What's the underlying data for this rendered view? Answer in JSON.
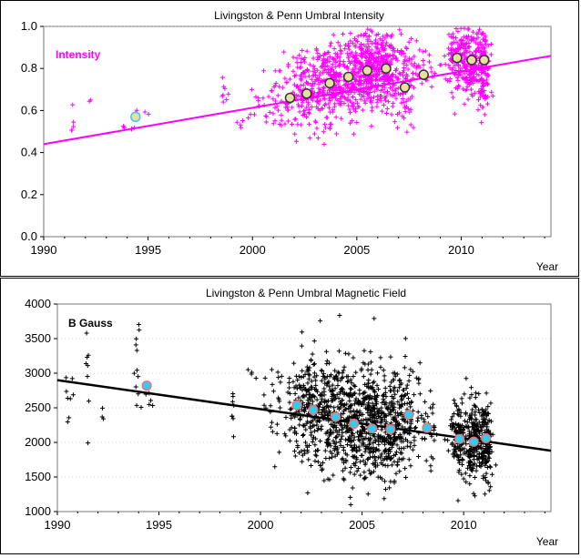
{
  "colors": {
    "plot_bg": "#ffffff",
    "intensity": "#ff00ff",
    "field": "#000000",
    "marker_fill": "#e8e0a0",
    "marker_fill_field": "#33ccee",
    "marker_ring_field": "#ff6666"
  },
  "chart_data": [
    {
      "type": "scatter",
      "title": "Livingston & Penn Umbral Intensity",
      "series_label": "Intensity",
      "xlabel": "Year",
      "ylabel": "",
      "xlim": [
        1990,
        2014.3
      ],
      "ylim": [
        0.0,
        1.0
      ],
      "xticks": [
        "1990",
        "1995",
        "2000",
        "2005",
        "2010"
      ],
      "yticks": [
        "0.0",
        "0.2",
        "0.4",
        "0.6",
        "0.8",
        "1.0"
      ],
      "grid": false,
      "trend_line": {
        "x": [
          1990,
          2014.3
        ],
        "y": [
          0.44,
          0.86
        ]
      },
      "yearly_means": {
        "x": [
          1994.4,
          2001.8,
          2002.6,
          2003.7,
          2004.6,
          2005.5,
          2006.4,
          2007.3,
          2008.2,
          2009.8,
          2010.5,
          2011.1
        ],
        "y": [
          0.57,
          0.66,
          0.68,
          0.73,
          0.76,
          0.79,
          0.8,
          0.71,
          0.77,
          0.85,
          0.84,
          0.84
        ]
      },
      "scatter_clusters": [
        {
          "x": 1991.4,
          "y": 0.55,
          "n": 5,
          "sx": 0.05,
          "sy": 0.06
        },
        {
          "x": 1992.2,
          "y": 0.63,
          "n": 2,
          "sx": 0.05,
          "sy": 0.02
        },
        {
          "x": 1993.8,
          "y": 0.52,
          "n": 3,
          "sx": 0.05,
          "sy": 0.02
        },
        {
          "x": 1994.3,
          "y": 0.56,
          "n": 6,
          "sx": 0.1,
          "sy": 0.04
        },
        {
          "x": 1995.1,
          "y": 0.6,
          "n": 2,
          "sx": 0.1,
          "sy": 0.01
        },
        {
          "x": 1998.7,
          "y": 0.7,
          "n": 8,
          "sx": 0.1,
          "sy": 0.07
        },
        {
          "x": 1999.4,
          "y": 0.56,
          "n": 4,
          "sx": 0.15,
          "sy": 0.05
        },
        {
          "x": 2000.4,
          "y": 0.62,
          "n": 15,
          "sx": 0.3,
          "sy": 0.05
        },
        {
          "x": 2001.4,
          "y": 0.66,
          "n": 45,
          "sx": 0.5,
          "sy": 0.08
        },
        {
          "x": 2002.6,
          "y": 0.7,
          "n": 140,
          "sx": 0.45,
          "sy": 0.1
        },
        {
          "x": 2003.7,
          "y": 0.74,
          "n": 180,
          "sx": 0.4,
          "sy": 0.1
        },
        {
          "x": 2004.6,
          "y": 0.77,
          "n": 170,
          "sx": 0.35,
          "sy": 0.1
        },
        {
          "x": 2005.5,
          "y": 0.8,
          "n": 220,
          "sx": 0.3,
          "sy": 0.09
        },
        {
          "x": 2006.4,
          "y": 0.8,
          "n": 200,
          "sx": 0.35,
          "sy": 0.09
        },
        {
          "x": 2007.3,
          "y": 0.73,
          "n": 80,
          "sx": 0.3,
          "sy": 0.1
        },
        {
          "x": 2008.2,
          "y": 0.78,
          "n": 40,
          "sx": 0.35,
          "sy": 0.06
        },
        {
          "x": 2009.8,
          "y": 0.84,
          "n": 110,
          "sx": 0.25,
          "sy": 0.08
        },
        {
          "x": 2010.5,
          "y": 0.82,
          "n": 160,
          "sx": 0.25,
          "sy": 0.09
        },
        {
          "x": 2011.1,
          "y": 0.8,
          "n": 130,
          "sx": 0.15,
          "sy": 0.1
        }
      ]
    },
    {
      "type": "scatter",
      "title": "Livingston & Penn Umbral Magnetic Field",
      "series_label": "B Gauss",
      "xlabel": "Year",
      "ylabel": "",
      "xlim": [
        1990,
        2014.3
      ],
      "ylim": [
        1000,
        4000
      ],
      "xticks": [
        "1990",
        "1995",
        "2000",
        "2005",
        "2010"
      ],
      "yticks": [
        "1000",
        "1500",
        "2000",
        "2500",
        "3000",
        "3500",
        "4000"
      ],
      "grid": true,
      "trend_line": {
        "x": [
          1990,
          2014.3
        ],
        "y": [
          2900,
          1880
        ]
      },
      "yearly_means": {
        "x": [
          1994.4,
          2001.8,
          2002.6,
          2003.7,
          2004.6,
          2005.5,
          2006.4,
          2007.3,
          2008.2,
          2009.8,
          2010.5,
          2011.1
        ],
        "y": [
          2820,
          2540,
          2470,
          2370,
          2270,
          2200,
          2190,
          2400,
          2210,
          2050,
          2010,
          2060
        ]
      },
      "scatter_clusters": [
        {
          "x": 1990.5,
          "y": 2700,
          "n": 8,
          "sx": 0.2,
          "sy": 250
        },
        {
          "x": 1991.4,
          "y": 2900,
          "n": 8,
          "sx": 0.1,
          "sy": 350
        },
        {
          "x": 1992.3,
          "y": 2450,
          "n": 3,
          "sx": 0.1,
          "sy": 80
        },
        {
          "x": 1993.9,
          "y": 3000,
          "n": 12,
          "sx": 0.1,
          "sy": 380
        },
        {
          "x": 1994.6,
          "y": 2500,
          "n": 5,
          "sx": 0.2,
          "sy": 150
        },
        {
          "x": 1998.7,
          "y": 2500,
          "n": 8,
          "sx": 0.1,
          "sy": 200
        },
        {
          "x": 1999.7,
          "y": 3000,
          "n": 6,
          "sx": 0.2,
          "sy": 120
        },
        {
          "x": 2000.8,
          "y": 2550,
          "n": 25,
          "sx": 0.3,
          "sy": 350
        },
        {
          "x": 2001.8,
          "y": 2550,
          "n": 80,
          "sx": 0.35,
          "sy": 400
        },
        {
          "x": 2002.6,
          "y": 2470,
          "n": 150,
          "sx": 0.4,
          "sy": 400
        },
        {
          "x": 2003.7,
          "y": 2400,
          "n": 200,
          "sx": 0.4,
          "sy": 420
        },
        {
          "x": 2004.6,
          "y": 2300,
          "n": 170,
          "sx": 0.35,
          "sy": 400
        },
        {
          "x": 2005.5,
          "y": 2250,
          "n": 230,
          "sx": 0.3,
          "sy": 380
        },
        {
          "x": 2006.4,
          "y": 2200,
          "n": 200,
          "sx": 0.35,
          "sy": 360
        },
        {
          "x": 2007.3,
          "y": 2400,
          "n": 80,
          "sx": 0.3,
          "sy": 380
        },
        {
          "x": 2008.2,
          "y": 2200,
          "n": 40,
          "sx": 0.35,
          "sy": 280
        },
        {
          "x": 2009.8,
          "y": 2050,
          "n": 120,
          "sx": 0.25,
          "sy": 280
        },
        {
          "x": 2010.5,
          "y": 2000,
          "n": 170,
          "sx": 0.25,
          "sy": 300
        },
        {
          "x": 2011.1,
          "y": 2050,
          "n": 130,
          "sx": 0.15,
          "sy": 320
        }
      ]
    }
  ]
}
